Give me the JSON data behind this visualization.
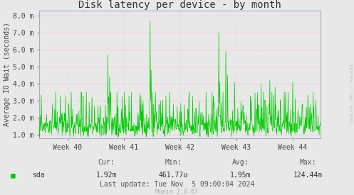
{
  "title": "Disk latency per device - by month",
  "ylabel": "Average IO Wait (seconds)",
  "background_color": "#e8e8e8",
  "plot_bg_color": "#e8e8e8",
  "line_color": "#00cc00",
  "grid_color_h": "#ff9999",
  "grid_color_v": "#cccccc",
  "ytick_labels": [
    "1.0 m",
    "2.0 m",
    "3.0 m",
    "4.0 m",
    "5.0 m",
    "6.0 m",
    "7.0 m",
    "8.0 m"
  ],
  "ytick_values": [
    1.0,
    2.0,
    3.0,
    4.0,
    5.0,
    6.0,
    7.0,
    8.0
  ],
  "ylim_min": 0.8,
  "ylim_max": 8.3,
  "xtick_labels": [
    "Week 40",
    "Week 41",
    "Week 42",
    "Week 43",
    "Week 44"
  ],
  "xtick_positions": [
    0.5,
    1.5,
    2.5,
    3.5,
    4.5
  ],
  "xlim": [
    0,
    5
  ],
  "legend_label": "sda",
  "legend_color": "#00cc00",
  "cur": "1.92m",
  "min": "461.77u",
  "avg": "1.95m",
  "max": "124.44m",
  "last_update": "Last update: Tue Nov  5 09:00:04 2024",
  "munin_version": "Munin 2.0.67",
  "rrdtool_text": "RRDTOOL / TOBI OETIKER",
  "title_fontsize": 10,
  "axis_label_fontsize": 7,
  "tick_fontsize": 7,
  "footer_fontsize": 7,
  "munin_fontsize": 6
}
